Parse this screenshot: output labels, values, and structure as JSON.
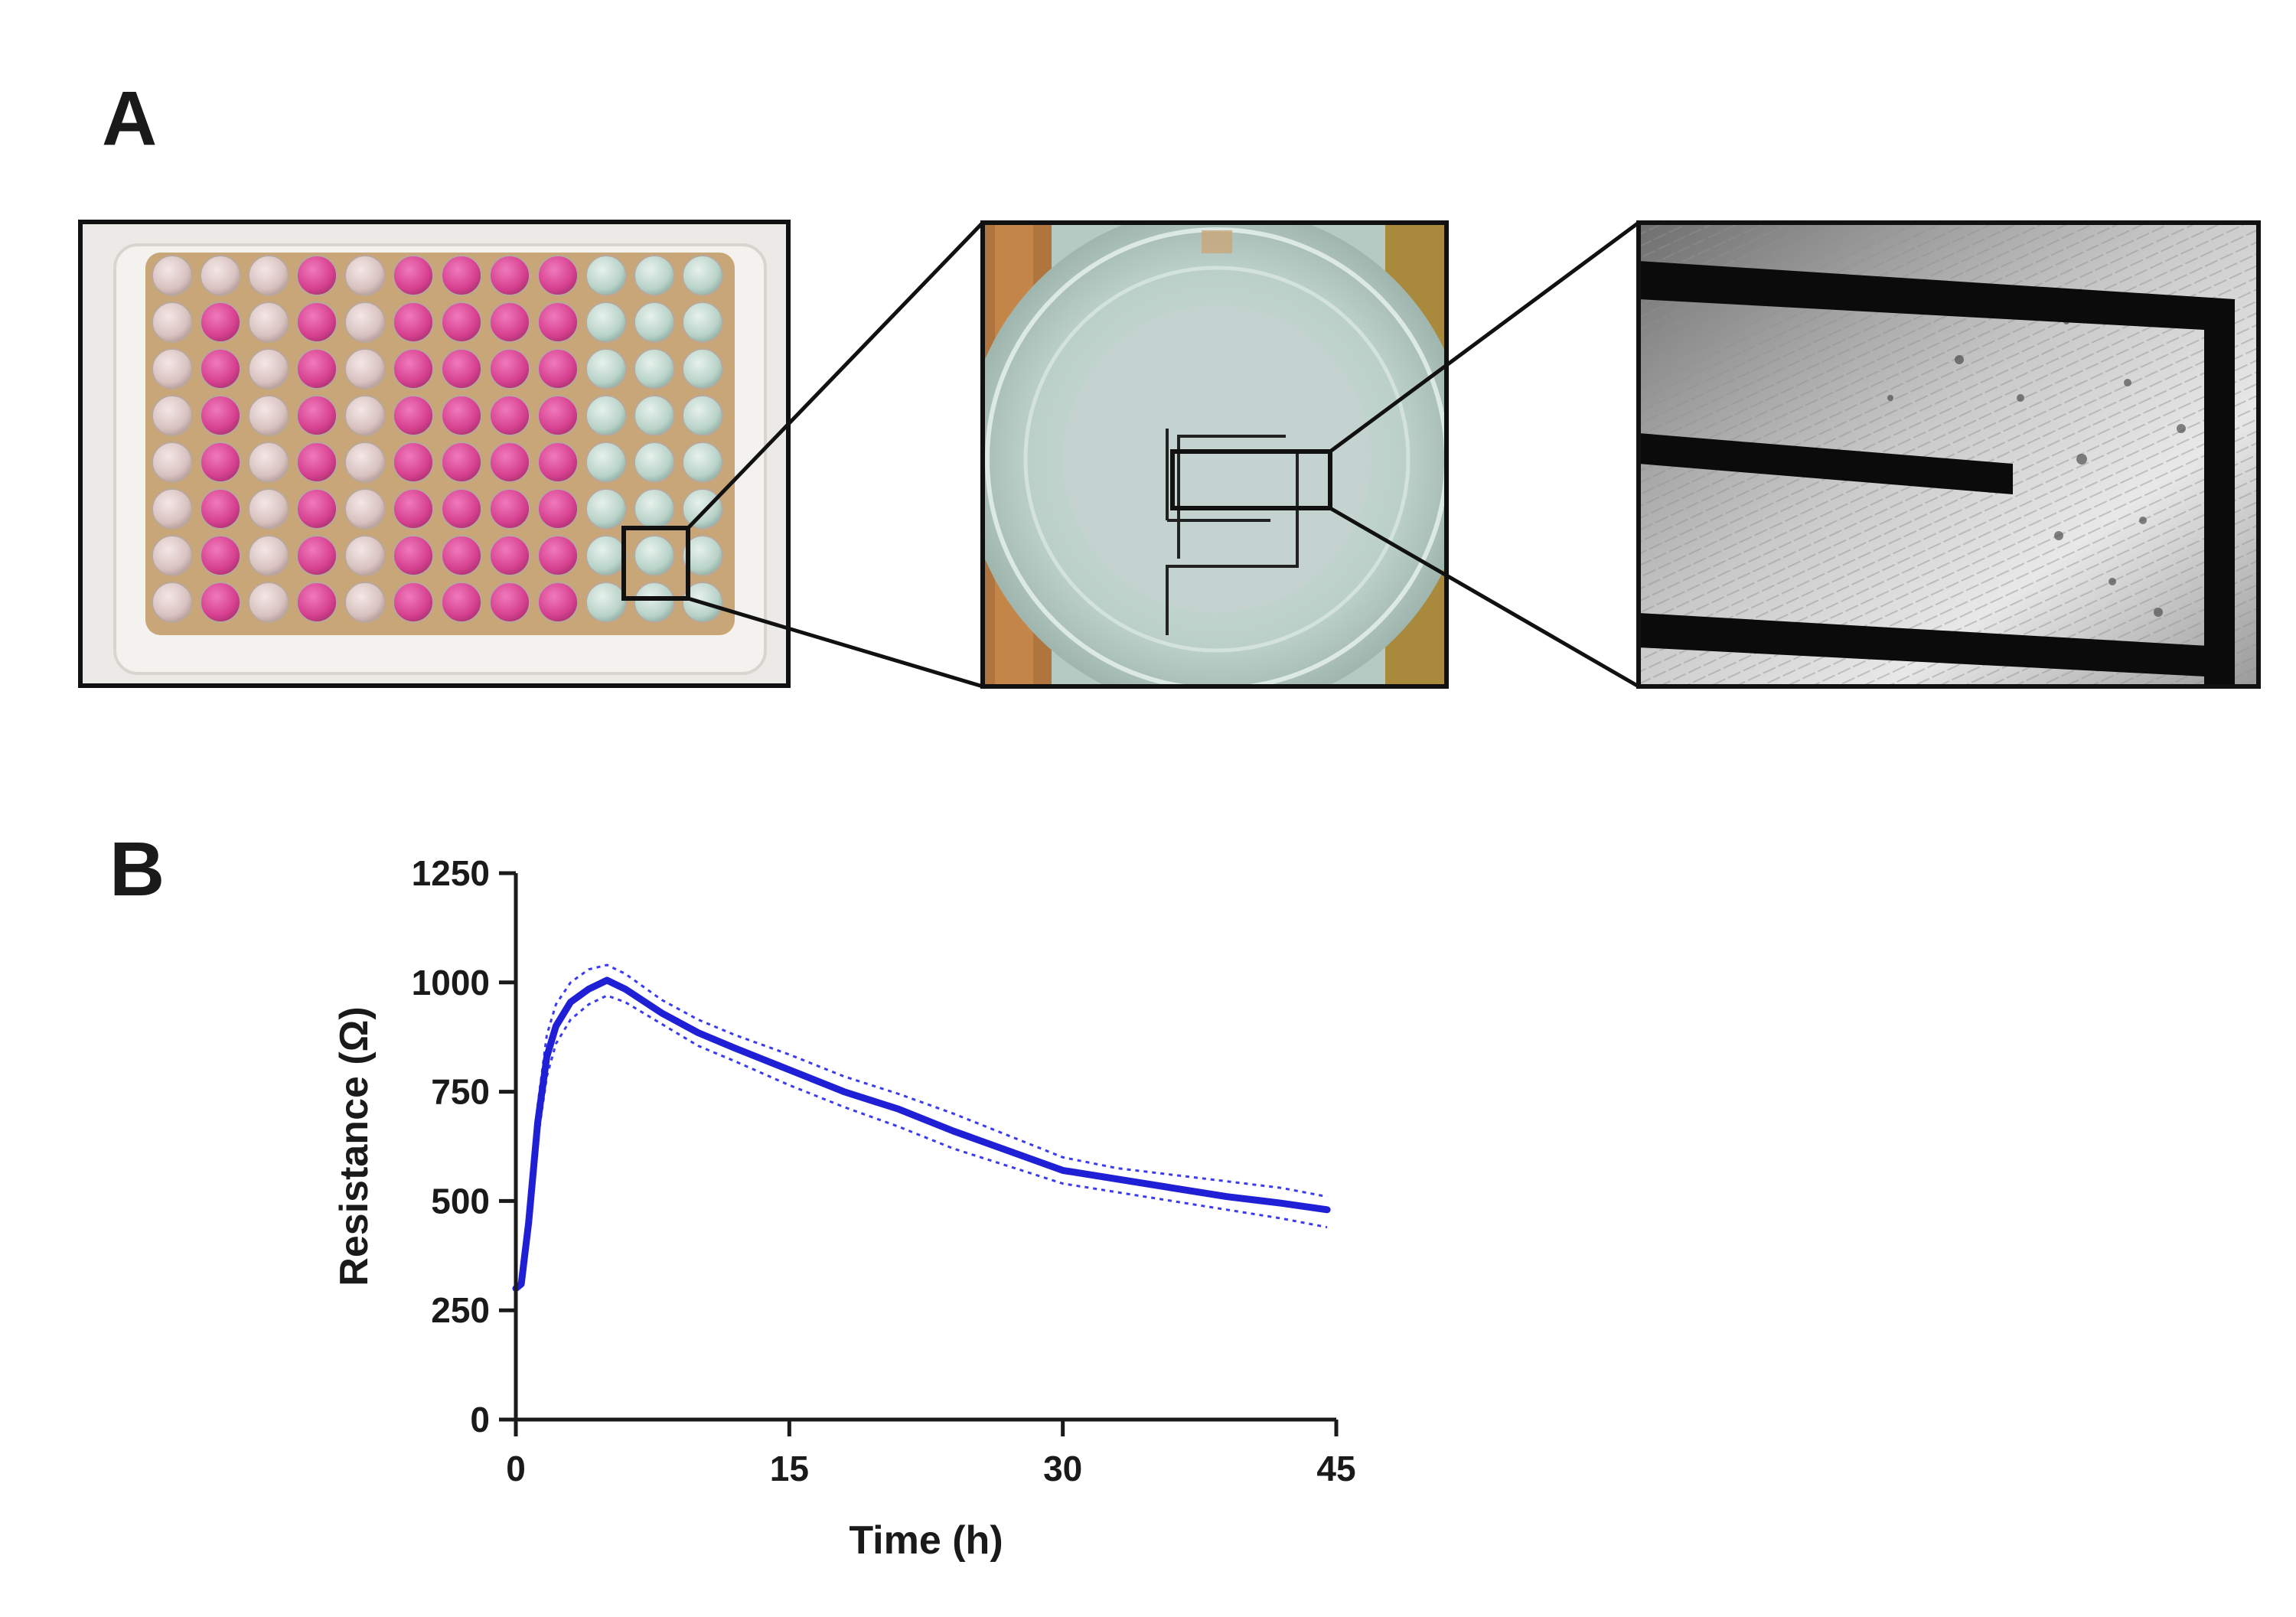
{
  "figure": {
    "panel_a_label": "A",
    "panel_b_label": "B",
    "images": [
      {
        "name": "96-well electrode plate photograph"
      },
      {
        "name": "single well with interdigitated electrode"
      },
      {
        "name": "micrograph of cells on electrode"
      }
    ]
  },
  "colors": {
    "series": "#1f1fd6",
    "band": "#3a3af0",
    "axis": "#1a1a1a",
    "pink_well": "#d6408f",
    "clear_well": "#b9d3c9"
  },
  "chart_data": {
    "type": "line",
    "title": "",
    "xlabel": "Time (h)",
    "ylabel": "Resistance  (Ω)",
    "xlim": [
      0,
      45
    ],
    "ylim": [
      0,
      1250
    ],
    "xticks": [
      0,
      15,
      30,
      45
    ],
    "yticks": [
      0,
      250,
      500,
      750,
      1000,
      1250
    ],
    "xtick_labels": [
      "0",
      "15",
      "30",
      "45"
    ],
    "ytick_labels": [
      "0",
      "250",
      "500",
      "750",
      "1000",
      "1250"
    ],
    "series": [
      {
        "name": "mean",
        "style": "solid",
        "x": [
          0,
          0.3,
          0.7,
          1.2,
          1.7,
          2.2,
          3,
          4,
          5,
          6,
          8,
          10,
          12,
          15,
          18,
          21,
          24,
          27,
          30,
          33,
          36,
          39,
          42,
          44.5
        ],
        "y": [
          300,
          310,
          450,
          680,
          830,
          900,
          955,
          985,
          1005,
          985,
          930,
          885,
          850,
          800,
          750,
          710,
          660,
          615,
          570,
          550,
          530,
          510,
          495,
          480
        ]
      },
      {
        "name": "upper bound",
        "style": "dotted",
        "x": [
          0,
          0.3,
          0.7,
          1.2,
          1.7,
          2.2,
          3,
          4,
          5,
          6,
          8,
          10,
          12,
          15,
          18,
          21,
          24,
          27,
          30,
          33,
          36,
          39,
          42,
          44.5
        ],
        "y": [
          300,
          320,
          480,
          720,
          880,
          950,
          1000,
          1030,
          1040,
          1020,
          960,
          915,
          880,
          835,
          785,
          745,
          700,
          650,
          600,
          575,
          560,
          545,
          530,
          510
        ]
      },
      {
        "name": "lower bound",
        "style": "dotted",
        "x": [
          0,
          0.3,
          0.7,
          1.2,
          1.7,
          2.2,
          3,
          4,
          5,
          6,
          8,
          10,
          12,
          15,
          18,
          21,
          24,
          27,
          30,
          33,
          36,
          39,
          42,
          44.5
        ],
        "y": [
          300,
          300,
          420,
          640,
          785,
          860,
          915,
          950,
          970,
          955,
          905,
          855,
          820,
          765,
          715,
          670,
          620,
          580,
          540,
          520,
          500,
          480,
          460,
          440
        ]
      }
    ]
  }
}
